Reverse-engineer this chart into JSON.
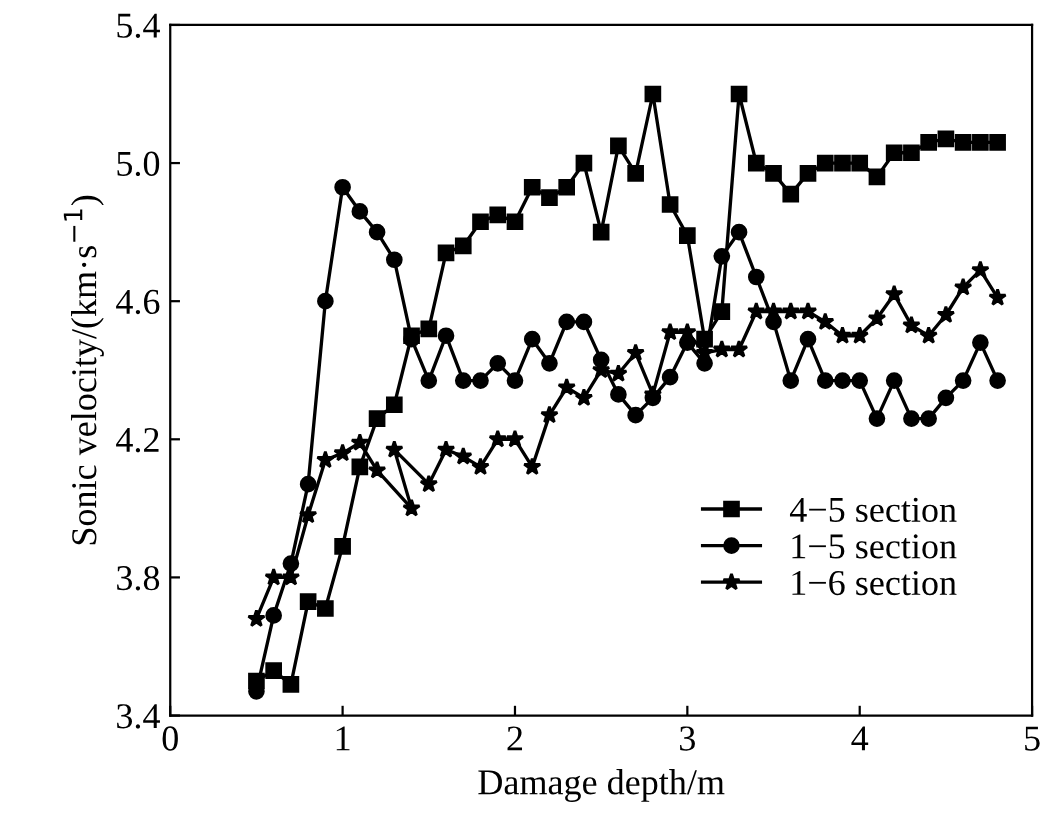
{
  "chart_data": {
    "type": "line",
    "xlabel": "Damage depth/m",
    "ylabel": "Sonic velocity/(km·s$^{−1}$)",
    "xlim": [
      0,
      5
    ],
    "xticks": [
      0,
      1,
      2,
      3,
      4,
      5
    ],
    "ylim": [
      3.4,
      5.4
    ],
    "yticks": [
      3.4,
      3.8,
      4.2,
      4.6,
      {
        "value": 5.0,
        "label": "5.0"
      },
      5.4
    ],
    "grid": false,
    "legend": "bottom right",
    "series": [
      {
        "name": "4−5 section",
        "color": "#000000",
        "marker": "square",
        "x": [
          0.5,
          0.6,
          0.7,
          0.8,
          0.9,
          1.0,
          1.1,
          1.2,
          1.3,
          1.4,
          1.5,
          1.6,
          1.7,
          1.8,
          1.9,
          2.0,
          2.1,
          2.2,
          2.3,
          2.4,
          2.5,
          2.6,
          2.7,
          2.8,
          2.9,
          3.0,
          3.1,
          3.2,
          3.3,
          3.4,
          3.5,
          3.6,
          3.7,
          3.8,
          3.9,
          4.0,
          4.1,
          4.2,
          4.3,
          4.4,
          4.5,
          4.6,
          4.7,
          4.8
        ],
        "values": [
          3.5,
          3.53,
          3.49,
          3.73,
          3.71,
          3.89,
          4.12,
          4.26,
          4.3,
          4.5,
          4.52,
          4.74,
          4.76,
          4.83,
          4.85,
          4.83,
          4.93,
          4.9,
          4.93,
          5.0,
          4.8,
          5.05,
          4.97,
          5.2,
          4.88,
          4.79,
          4.49,
          4.57,
          5.2,
          5.0,
          4.97,
          4.91,
          4.97,
          5.0,
          5.0,
          5.0,
          4.96,
          5.03,
          5.03,
          5.06,
          5.07,
          5.06,
          5.06,
          5.06
        ]
      },
      {
        "name": "1−5 section",
        "color": "#000000",
        "marker": "circle",
        "x": [
          0.5,
          0.6,
          0.7,
          0.8,
          0.9,
          1.0,
          1.1,
          1.2,
          1.3,
          1.4,
          1.5,
          1.6,
          1.7,
          1.8,
          1.9,
          2.0,
          2.1,
          2.2,
          2.3,
          2.4,
          2.5,
          2.6,
          2.7,
          2.8,
          2.9,
          3.0,
          3.1,
          3.2,
          3.3,
          3.4,
          3.5,
          3.6,
          3.7,
          3.8,
          3.9,
          4.0,
          4.1,
          4.2,
          4.3,
          4.4,
          4.5,
          4.6,
          4.7,
          4.8
        ],
        "values": [
          3.47,
          3.69,
          3.84,
          4.07,
          4.6,
          4.93,
          4.86,
          4.8,
          4.72,
          4.49,
          4.37,
          4.5,
          4.37,
          4.37,
          4.42,
          4.37,
          4.49,
          4.42,
          4.54,
          4.54,
          4.43,
          4.33,
          4.27,
          4.32,
          4.38,
          4.48,
          4.42,
          4.73,
          4.8,
          4.67,
          4.54,
          4.37,
          4.49,
          4.37,
          4.37,
          4.37,
          4.26,
          4.37,
          4.26,
          4.26,
          4.32,
          4.37,
          4.48,
          4.37
        ]
      },
      {
        "name": "1−6 section",
        "color": "#000000",
        "marker": "star",
        "x": [
          0.5,
          0.6,
          0.7,
          0.8,
          0.9,
          1.0,
          1.1,
          1.2,
          1.4,
          1.3,
          1.5,
          1.6,
          1.7,
          1.8,
          1.9,
          2.0,
          2.1,
          2.2,
          2.3,
          2.4,
          2.5,
          2.6,
          2.7,
          2.8,
          2.9,
          3.0,
          3.1,
          3.2,
          3.3,
          3.4,
          3.5,
          3.6,
          3.7,
          3.8,
          3.9,
          4.0,
          4.1,
          4.2,
          4.3,
          4.4,
          4.5,
          4.6,
          4.7,
          4.8
        ],
        "values": [
          3.68,
          3.8,
          3.8,
          3.98,
          4.14,
          4.16,
          4.19,
          4.11,
          4.0,
          4.17,
          4.07,
          4.17,
          4.15,
          4.12,
          4.2,
          4.2,
          4.12,
          4.27,
          4.35,
          4.32,
          4.4,
          4.39,
          4.45,
          4.33,
          4.51,
          4.51,
          4.45,
          4.46,
          4.46,
          4.57,
          4.57,
          4.57,
          4.57,
          4.54,
          4.5,
          4.5,
          4.55,
          4.62,
          4.53,
          4.5,
          4.56,
          4.64,
          4.69,
          4.61
        ]
      }
    ]
  }
}
